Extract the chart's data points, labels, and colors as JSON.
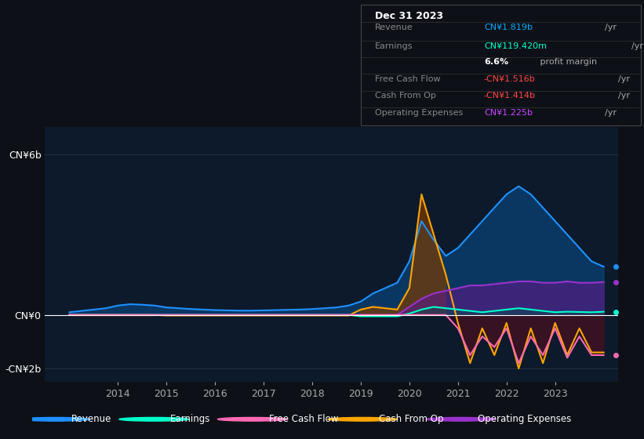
{
  "background_color": "#0d1117",
  "plot_bg_color": "#0d1a2b",
  "title_box": {
    "date": "Dec 31 2023",
    "rows": [
      {
        "label": "Revenue",
        "value": "CN¥1.819b",
        "unit": "/yr",
        "value_color": "#00aaff"
      },
      {
        "label": "Earnings",
        "value": "CN¥119.420m",
        "unit": "/yr",
        "value_color": "#00ffcc"
      },
      {
        "label": "",
        "value": "6.6%",
        "unit": " profit margin",
        "value_color": "#ffffff"
      },
      {
        "label": "Free Cash Flow",
        "value": "-CN¥1.516b",
        "unit": "/yr",
        "value_color": "#ff4444"
      },
      {
        "label": "Cash From Op",
        "value": "-CN¥1.414b",
        "unit": "/yr",
        "value_color": "#ff4444"
      },
      {
        "label": "Operating Expenses",
        "value": "CN¥1.225b",
        "unit": "/yr",
        "value_color": "#cc44ff"
      }
    ]
  },
  "ylim": [
    -2500000000.0,
    7000000000.0
  ],
  "xlim_start": 2012.5,
  "xlim_end": 2024.3,
  "xticks": [
    2014,
    2015,
    2016,
    2017,
    2018,
    2019,
    2020,
    2021,
    2022,
    2023
  ],
  "legend_items": [
    {
      "label": "Revenue",
      "color": "#1e90ff"
    },
    {
      "label": "Earnings",
      "color": "#00ffcc"
    },
    {
      "label": "Free Cash Flow",
      "color": "#ff69b4"
    },
    {
      "label": "Cash From Op",
      "color": "#ffa500"
    },
    {
      "label": "Operating Expenses",
      "color": "#9932cc"
    }
  ],
  "series": {
    "years": [
      2013.0,
      2013.25,
      2013.5,
      2013.75,
      2014.0,
      2014.25,
      2014.5,
      2014.75,
      2015.0,
      2015.25,
      2015.5,
      2015.75,
      2016.0,
      2016.25,
      2016.5,
      2016.75,
      2017.0,
      2017.25,
      2017.5,
      2017.75,
      2018.0,
      2018.25,
      2018.5,
      2018.75,
      2019.0,
      2019.25,
      2019.5,
      2019.75,
      2020.0,
      2020.25,
      2020.5,
      2020.75,
      2021.0,
      2021.25,
      2021.5,
      2021.75,
      2022.0,
      2022.25,
      2022.5,
      2022.75,
      2023.0,
      2023.25,
      2023.5,
      2023.75,
      2024.0
    ],
    "revenue": [
      100000000.0,
      150000000.0,
      200000000.0,
      250000000.0,
      350000000.0,
      400000000.0,
      380000000.0,
      350000000.0,
      280000000.0,
      250000000.0,
      220000000.0,
      200000000.0,
      180000000.0,
      170000000.0,
      160000000.0,
      160000000.0,
      170000000.0,
      180000000.0,
      190000000.0,
      200000000.0,
      220000000.0,
      250000000.0,
      280000000.0,
      350000000.0,
      500000000.0,
      800000000.0,
      1000000000.0,
      1200000000.0,
      2000000000.0,
      3500000000.0,
      2800000000.0,
      2200000000.0,
      2500000000.0,
      3000000000.0,
      3500000000.0,
      4000000000.0,
      4500000000.0,
      4800000000.0,
      4500000000.0,
      4000000000.0,
      3500000000.0,
      3000000000.0,
      2500000000.0,
      2000000000.0,
      1800000000.0
    ],
    "earnings": [
      0,
      0,
      0,
      0,
      0,
      0,
      0,
      0,
      0,
      0,
      0,
      0,
      0,
      0,
      0,
      0,
      0,
      0,
      0,
      0,
      0,
      0,
      0,
      0,
      -50000000.0,
      -50000000.0,
      -50000000.0,
      -50000000.0,
      50000000.0,
      200000000.0,
      300000000.0,
      250000000.0,
      200000000.0,
      150000000.0,
      100000000.0,
      150000000.0,
      200000000.0,
      250000000.0,
      200000000.0,
      150000000.0,
      100000000.0,
      120000000.0,
      110000000.0,
      100000000.0,
      119000000.0
    ],
    "free_cash_flow": [
      0,
      0,
      0,
      0,
      0,
      0,
      0,
      0,
      0,
      0,
      0,
      0,
      0,
      0,
      0,
      0,
      0,
      0,
      0,
      0,
      0,
      0,
      0,
      0,
      0,
      0,
      0,
      0,
      0,
      0,
      0,
      0,
      -500000000.0,
      -1500000000.0,
      -800000000.0,
      -1200000000.0,
      -500000000.0,
      -1800000000.0,
      -800000000.0,
      -1500000000.0,
      -500000000.0,
      -1600000000.0,
      -800000000.0,
      -1500000000.0,
      -1500000000.0
    ],
    "cash_from_op": [
      0,
      0,
      0,
      0,
      0,
      0,
      0,
      0,
      -20000000.0,
      -20000000.0,
      -20000000.0,
      -20000000.0,
      -20000000.0,
      -20000000.0,
      -20000000.0,
      -20000000.0,
      -20000000.0,
      -20000000.0,
      -20000000.0,
      -20000000.0,
      -20000000.0,
      -20000000.0,
      -20000000.0,
      -20000000.0,
      200000000.0,
      300000000.0,
      250000000.0,
      200000000.0,
      1000000000.0,
      4500000000.0,
      3000000000.0,
      1500000000.0,
      -300000000.0,
      -1800000000.0,
      -500000000.0,
      -1500000000.0,
      -300000000.0,
      -2000000000.0,
      -500000000.0,
      -1800000000.0,
      -300000000.0,
      -1500000000.0,
      -500000000.0,
      -1400000000.0,
      -1400000000.0
    ],
    "opex": [
      0,
      0,
      0,
      0,
      0,
      0,
      0,
      0,
      0,
      0,
      0,
      0,
      0,
      0,
      0,
      0,
      0,
      0,
      0,
      0,
      0,
      0,
      0,
      0,
      0,
      0,
      0,
      0,
      300000000.0,
      600000000.0,
      800000000.0,
      900000000.0,
      1000000000.0,
      1100000000.0,
      1100000000.0,
      1150000000.0,
      1200000000.0,
      1250000000.0,
      1250000000.0,
      1200000000.0,
      1200000000.0,
      1250000000.0,
      1200000000.0,
      1200000000.0,
      1225000000.0
    ]
  }
}
